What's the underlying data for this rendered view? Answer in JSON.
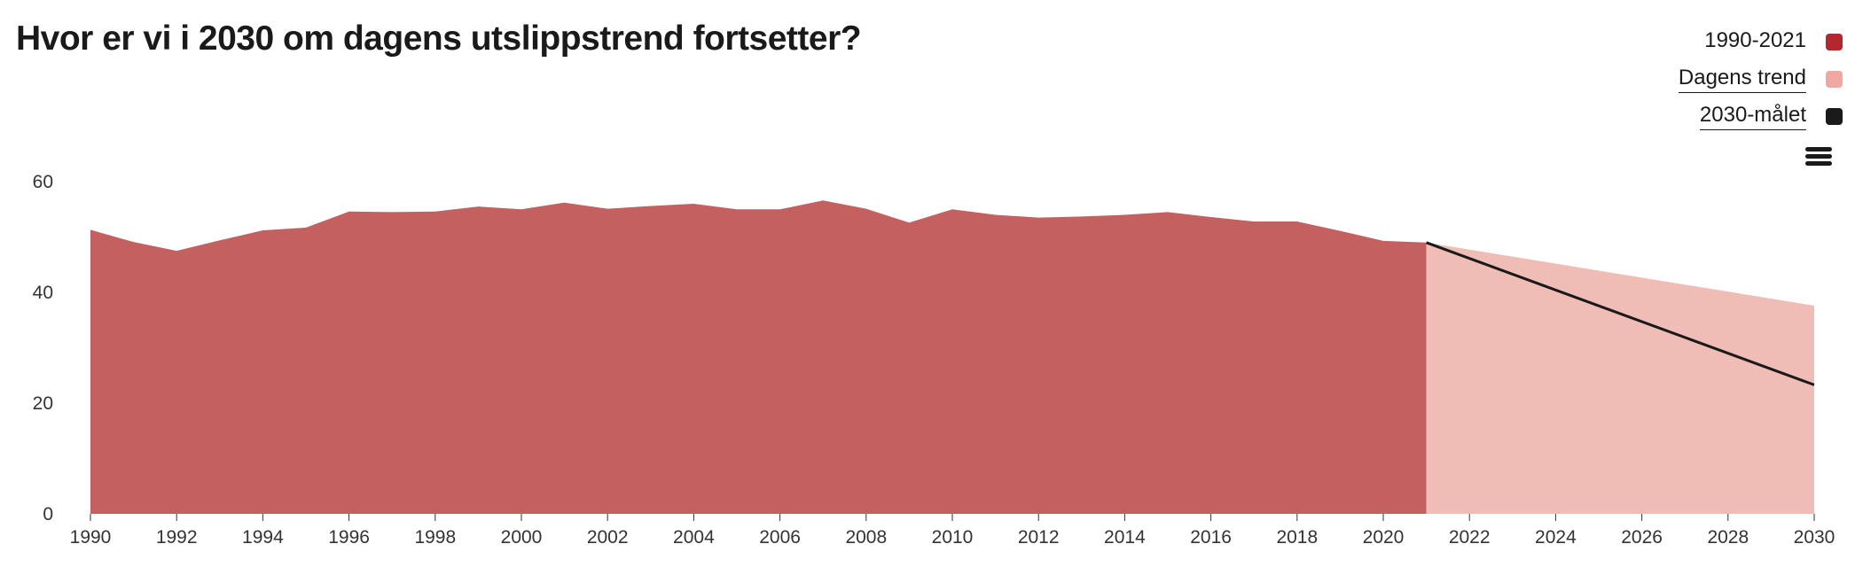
{
  "chart_data": {
    "type": "area",
    "title": "Hvor er vi i 2030 om dagens utslippstrend fortsetter?",
    "xlabel": "",
    "ylabel": "",
    "xlim": [
      1990,
      2030
    ],
    "ylim": [
      0,
      60
    ],
    "x_ticks": [
      "1990",
      "1992",
      "1994",
      "1996",
      "1998",
      "2000",
      "2002",
      "2004",
      "2006",
      "2008",
      "2010",
      "2012",
      "2014",
      "2016",
      "2018",
      "2020",
      "2022",
      "2024",
      "2026",
      "2028",
      "2030"
    ],
    "y_ticks": [
      "0",
      "20",
      "40",
      "60"
    ],
    "grid": false,
    "legend_position": "top-right",
    "series": [
      {
        "name": "1990-2021",
        "type": "area",
        "color": "#c46060",
        "legend_color": "#b3272f",
        "x": [
          1990,
          1991,
          1992,
          1993,
          1994,
          1995,
          1996,
          1997,
          1998,
          1999,
          2000,
          2001,
          2002,
          2003,
          2004,
          2005,
          2006,
          2007,
          2008,
          2009,
          2010,
          2011,
          2012,
          2013,
          2014,
          2015,
          2016,
          2017,
          2018,
          2019,
          2020,
          2021
        ],
        "values": [
          51.3,
          49.1,
          47.5,
          49.4,
          51.2,
          51.7,
          54.6,
          54.5,
          54.6,
          55.5,
          55.0,
          56.2,
          55.1,
          55.6,
          56.0,
          55.0,
          55.0,
          56.6,
          55.1,
          52.6,
          55.0,
          54.0,
          53.5,
          53.7,
          54.0,
          54.5,
          53.6,
          52.8,
          52.8,
          51.1,
          49.3,
          49.0
        ]
      },
      {
        "name": "Dagens trend",
        "type": "area",
        "color": "#efbdb5",
        "legend_color": "#f0a9a2",
        "x": [
          2021,
          2030
        ],
        "values": [
          49.0,
          37.6
        ]
      },
      {
        "name": "2030-målet",
        "type": "line",
        "color": "#1a1a1a",
        "legend_color": "#1a1a1a",
        "x": [
          2021,
          2030
        ],
        "values": [
          49.0,
          23.3
        ]
      }
    ]
  }
}
